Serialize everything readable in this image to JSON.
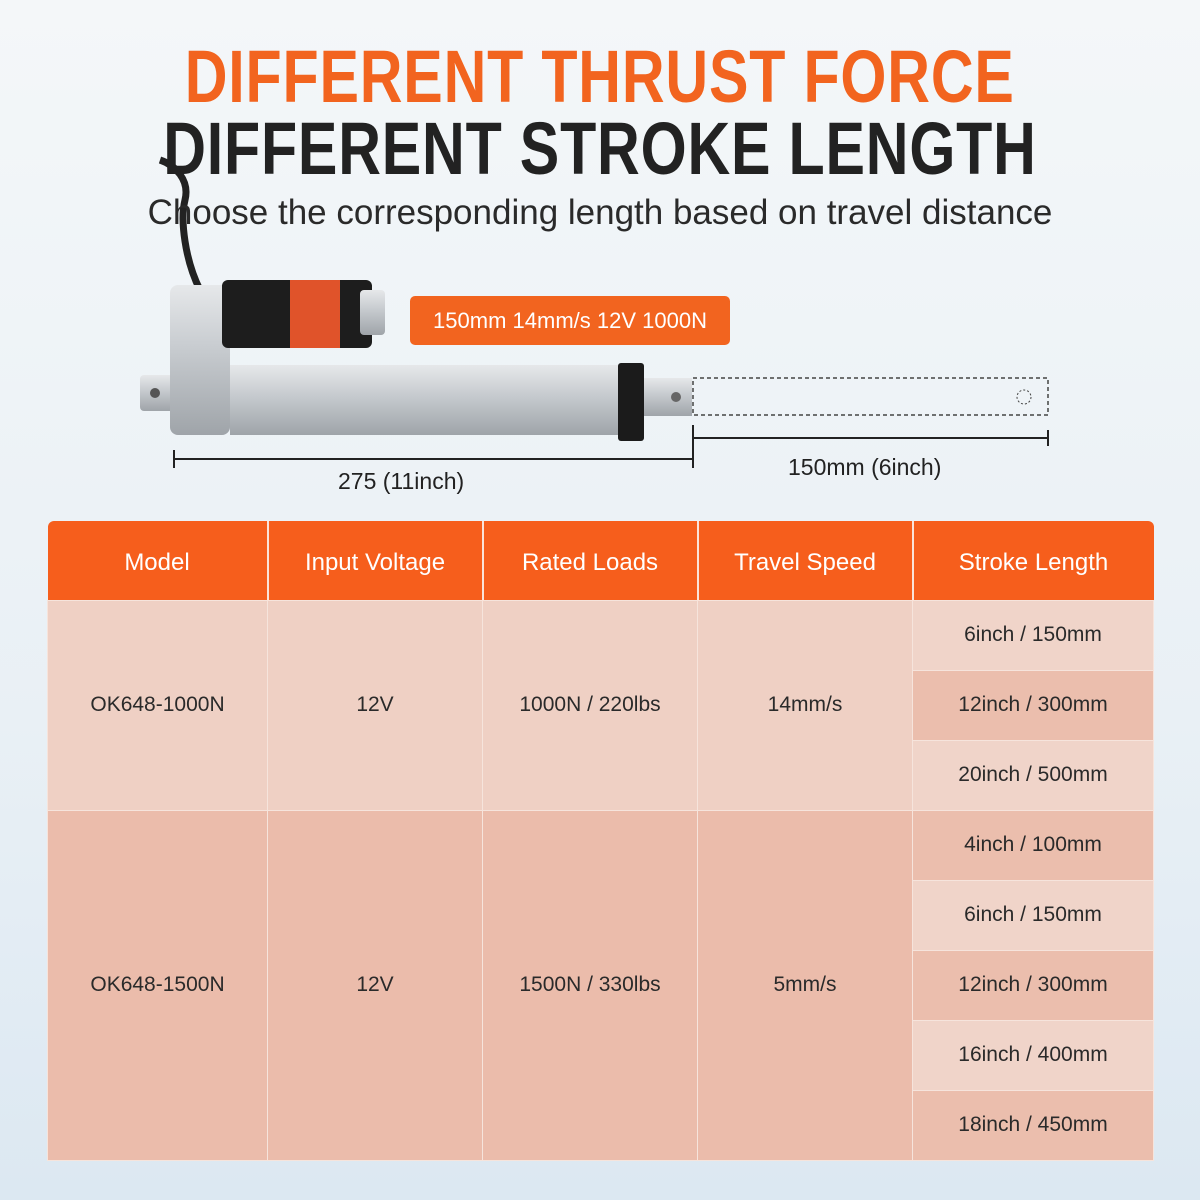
{
  "header": {
    "title_line1": "DIFFERENT THRUST FORCE",
    "title_line2": "DIFFERENT STROKE LENGTH",
    "subtitle": "Choose the corresponding length based on travel distance"
  },
  "product": {
    "spec_badge": "150mm 14mm/s 12V 1000N",
    "body_length": "275 (11inch)",
    "stroke_length": "150mm (6inch)"
  },
  "colors": {
    "accent": "#f2641f",
    "header_bg": "#f65e1c",
    "text": "#222222"
  },
  "table": {
    "headers": [
      "Model",
      "Input Voltage",
      "Rated Loads",
      "Travel Speed",
      "Stroke Length"
    ],
    "groups": [
      {
        "model": "OK648-1000N",
        "voltage": "12V",
        "load": "1000N / 220lbs",
        "speed": "14mm/s",
        "strokes": [
          "6inch / 150mm",
          "12inch / 300mm",
          "20inch / 500mm"
        ]
      },
      {
        "model": "OK648-1500N",
        "voltage": "12V",
        "load": "1500N / 330lbs",
        "speed": "5mm/s",
        "strokes": [
          "4inch / 100mm",
          "6inch / 150mm",
          "12inch / 300mm",
          "16inch / 400mm",
          "18inch / 450mm"
        ]
      }
    ]
  }
}
